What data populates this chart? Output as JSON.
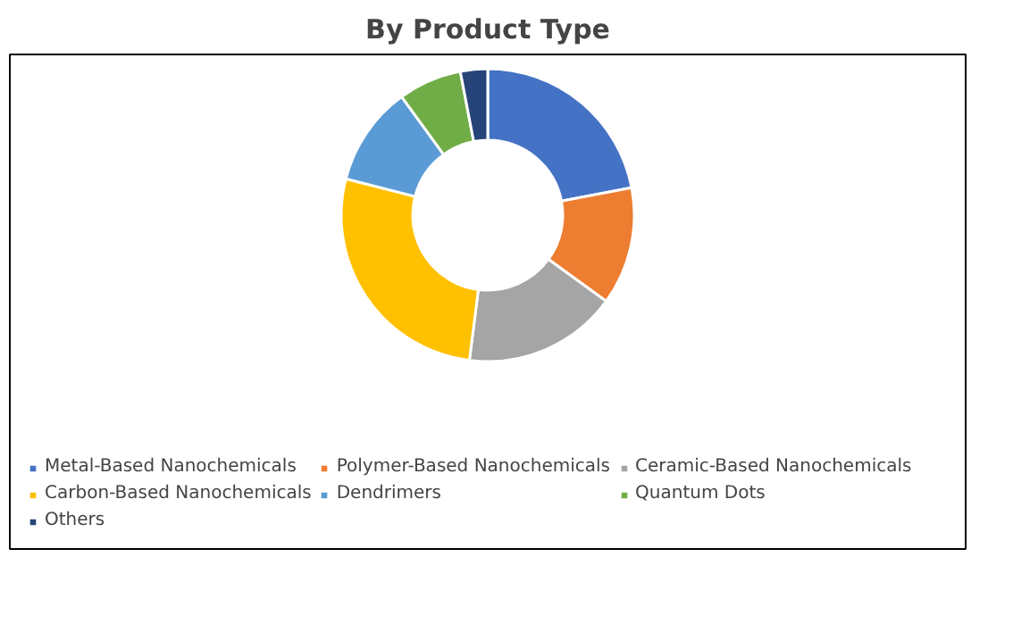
{
  "chart_data": {
    "type": "donut",
    "title": "By Product Type",
    "categories": [
      "Metal-Based Nanochemicals",
      "Polymer-Based Nanochemicals",
      "Ceramic-Based Nanochemicals",
      "Carbon-Based Nanochemicals",
      "Dendrimers",
      "Quantum Dots",
      "Others"
    ],
    "values": [
      22,
      13,
      17,
      27,
      11,
      7,
      3
    ],
    "colors": [
      "#4472c4",
      "#ed7d31",
      "#a5a5a5",
      "#ffc000",
      "#5b9bd5",
      "#70ad47",
      "#264478"
    ],
    "legend": "bottom"
  }
}
